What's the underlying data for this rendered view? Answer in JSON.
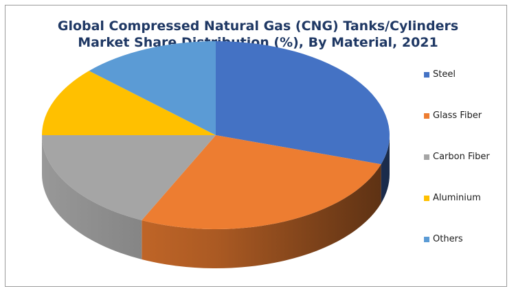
{
  "chart_data": {
    "type": "pie",
    "title_lines": [
      "Global Compressed Natural Gas (CNG) Tanks/Cylinders",
      "Market Share Distribution (%), By Material, 2021"
    ],
    "style": "3d",
    "legend_position": "right",
    "slices": [
      {
        "label": "Steel",
        "value": 30,
        "color": "#4472c4"
      },
      {
        "label": "Glass Fiber",
        "value": 27,
        "color": "#ed7d31"
      },
      {
        "label": "Carbon Fiber",
        "value": 18,
        "color": "#a5a5a5"
      },
      {
        "label": "Aluminium",
        "value": 12,
        "color": "#ffc000"
      },
      {
        "label": "Others",
        "value": 13,
        "color": "#5b9bd5"
      }
    ]
  }
}
